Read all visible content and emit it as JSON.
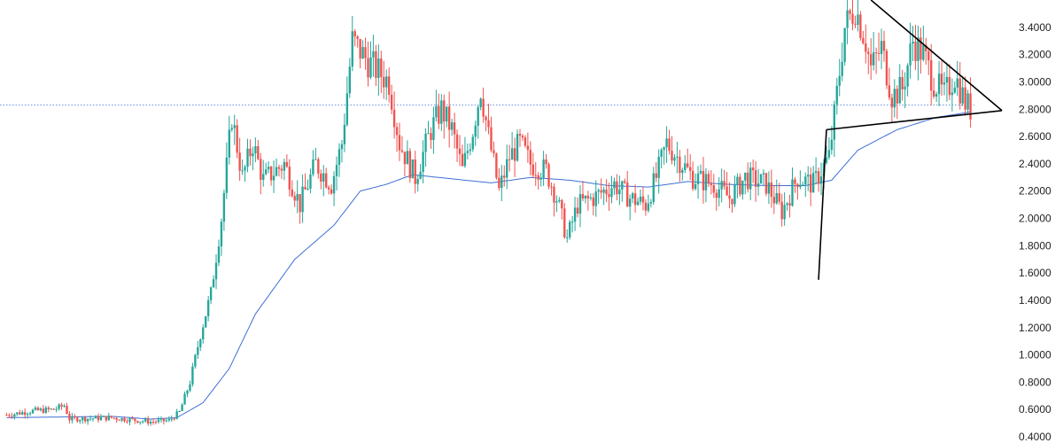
{
  "chart_data": {
    "type": "candlestick",
    "title": "",
    "xlabel": "",
    "ylabel": "",
    "ylim": [
      0.4,
      3.6
    ],
    "y_ticks": [
      "0.4000",
      "0.6000",
      "0.8000",
      "1.0000",
      "1.2000",
      "1.4000",
      "1.6000",
      "1.8000",
      "2.0000",
      "2.2000",
      "2.4000",
      "2.6000",
      "2.8000",
      "3.0000",
      "3.2000",
      "3.4000"
    ],
    "grid": false,
    "current_price_line": 2.83,
    "colors": {
      "up": "#26a69a",
      "down": "#ef5350",
      "ma": "#3d6fd6",
      "trendline": "#000000",
      "price_line": "#3d6fd6"
    },
    "price_anchors": [
      [
        0,
        0.56
      ],
      [
        10,
        0.59
      ],
      [
        18,
        0.6
      ],
      [
        22,
        0.63
      ],
      [
        24,
        0.53
      ],
      [
        40,
        0.54
      ],
      [
        55,
        0.51
      ],
      [
        62,
        0.52
      ],
      [
        66,
        0.58
      ],
      [
        70,
        0.8
      ],
      [
        74,
        1.15
      ],
      [
        78,
        1.45
      ],
      [
        82,
        2.0
      ],
      [
        86,
        2.75
      ],
      [
        90,
        2.3
      ],
      [
        94,
        2.55
      ],
      [
        98,
        2.28
      ],
      [
        106,
        2.4
      ],
      [
        112,
        2.1
      ],
      [
        118,
        2.4
      ],
      [
        124,
        2.25
      ],
      [
        128,
        2.55
      ],
      [
        132,
        3.3
      ],
      [
        138,
        3.15
      ],
      [
        146,
        3.0
      ],
      [
        150,
        2.55
      ],
      [
        156,
        2.3
      ],
      [
        162,
        2.65
      ],
      [
        166,
        2.8
      ],
      [
        170,
        2.65
      ],
      [
        174,
        2.35
      ],
      [
        178,
        2.65
      ],
      [
        181,
        2.95
      ],
      [
        184,
        2.6
      ],
      [
        188,
        2.2
      ],
      [
        192,
        2.45
      ],
      [
        196,
        2.55
      ],
      [
        200,
        2.4
      ],
      [
        206,
        2.35
      ],
      [
        210,
        2.15
      ],
      [
        214,
        1.85
      ],
      [
        218,
        2.1
      ],
      [
        224,
        2.15
      ],
      [
        232,
        2.25
      ],
      [
        238,
        2.15
      ],
      [
        244,
        2.1
      ],
      [
        248,
        2.3
      ],
      [
        252,
        2.55
      ],
      [
        256,
        2.45
      ],
      [
        262,
        2.3
      ],
      [
        270,
        2.25
      ],
      [
        276,
        2.15
      ],
      [
        282,
        2.3
      ],
      [
        290,
        2.25
      ],
      [
        296,
        2.05
      ],
      [
        302,
        2.3
      ],
      [
        308,
        2.25
      ],
      [
        314,
        2.45
      ],
      [
        316,
        2.75
      ],
      [
        320,
        3.4
      ],
      [
        324,
        3.55
      ],
      [
        328,
        3.3
      ],
      [
        330,
        3.1
      ],
      [
        334,
        3.25
      ],
      [
        338,
        2.9
      ],
      [
        342,
        2.95
      ],
      [
        346,
        3.3
      ],
      [
        350,
        3.2
      ],
      [
        354,
        3.0
      ],
      [
        358,
        2.9
      ],
      [
        362,
        3.05
      ],
      [
        366,
        2.85
      ],
      [
        368,
        2.8
      ]
    ],
    "moving_average_anchors": [
      [
        0,
        0.54
      ],
      [
        40,
        0.55
      ],
      [
        55,
        0.53
      ],
      [
        65,
        0.54
      ],
      [
        75,
        0.65
      ],
      [
        85,
        0.9
      ],
      [
        95,
        1.3
      ],
      [
        110,
        1.7
      ],
      [
        125,
        1.95
      ],
      [
        135,
        2.2
      ],
      [
        145,
        2.25
      ],
      [
        155,
        2.32
      ],
      [
        165,
        2.3
      ],
      [
        175,
        2.28
      ],
      [
        185,
        2.26
      ],
      [
        200,
        2.3
      ],
      [
        215,
        2.28
      ],
      [
        230,
        2.24
      ],
      [
        245,
        2.23
      ],
      [
        260,
        2.27
      ],
      [
        275,
        2.25
      ],
      [
        290,
        2.24
      ],
      [
        305,
        2.24
      ],
      [
        315,
        2.28
      ],
      [
        325,
        2.5
      ],
      [
        340,
        2.65
      ],
      [
        355,
        2.74
      ],
      [
        368,
        2.78
      ]
    ],
    "trendlines": [
      {
        "from": {
          "bar": 310,
          "price": 1.55
        },
        "to": {
          "bar": 313,
          "price": 2.65
        }
      },
      {
        "from": {
          "bar": 313,
          "price": 2.65
        },
        "to": {
          "bar": 380,
          "price": 2.79
        }
      },
      {
        "from": {
          "bar": 330,
          "price": 3.6
        },
        "to": {
          "bar": 380,
          "price": 2.79
        }
      }
    ]
  }
}
